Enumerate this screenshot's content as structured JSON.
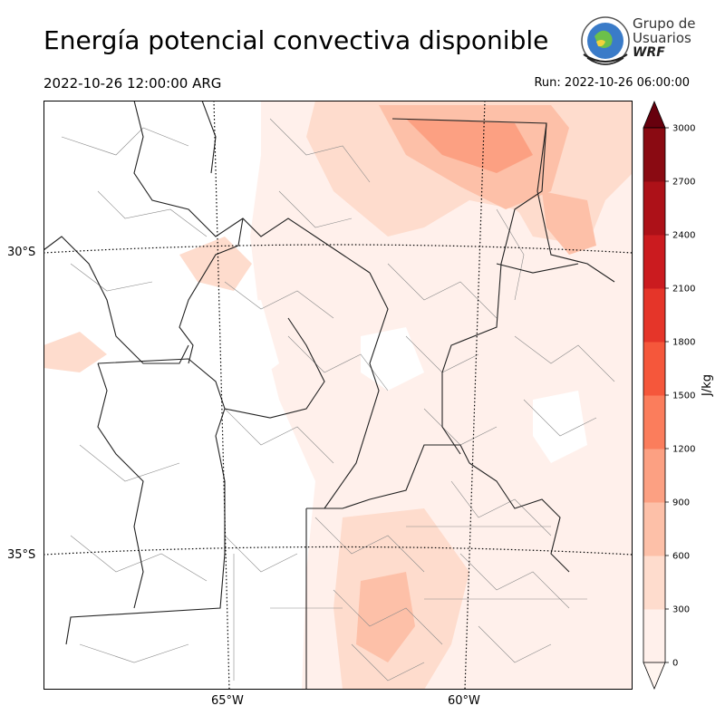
{
  "header": {
    "title": "Energía potencial convectiva disponible",
    "valid_time": "2022-10-26 12:00:00 ARG",
    "run_time": "Run: 2022-10-26 06:00:00"
  },
  "logo": {
    "line1": "Grupo de",
    "line2": "Usuarios",
    "line3": "WRF"
  },
  "map": {
    "lat_labels": [
      "30°S",
      "35°S"
    ],
    "lon_labels": [
      "65°W",
      "60°W"
    ]
  },
  "colorbar": {
    "unit": "J/kg",
    "ticks": [
      "0",
      "300",
      "600",
      "900",
      "1200",
      "1500",
      "1800",
      "2100",
      "2400",
      "2700",
      "3000"
    ],
    "colors": [
      "#fff0eb",
      "#fedccd",
      "#fdc0a8",
      "#fca082",
      "#fb7d5c",
      "#f5573b",
      "#e53529",
      "#cb1b1f",
      "#ad1118",
      "#8a0a12"
    ],
    "extend_colors": {
      "under": "#fff5f0",
      "over": "#67000d"
    }
  }
}
